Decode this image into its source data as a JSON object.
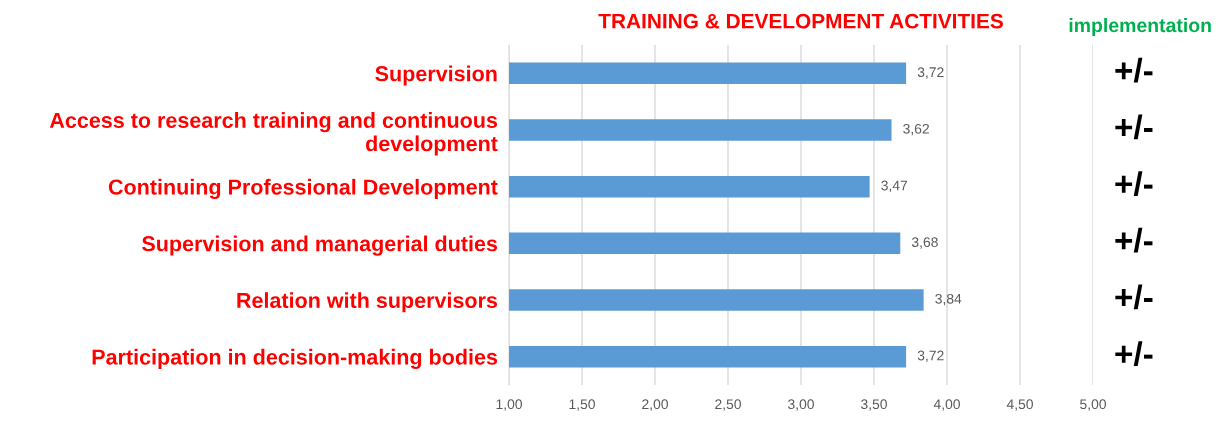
{
  "chart_data": {
    "type": "bar",
    "orientation": "horizontal",
    "title": "TRAINING & DEVELOPMENT ACTIVITIES",
    "categories": [
      "Supervision",
      "Access to research training and continuous\ndevelopment",
      "Continuing Professional Development",
      "Supervision and managerial duties",
      "Relation with supervisors",
      "Participation in decision-making bodies"
    ],
    "values": [
      3.72,
      3.62,
      3.47,
      3.68,
      3.84,
      3.72
    ],
    "value_labels": [
      "3,72",
      "3,62",
      "3,47",
      "3,68",
      "3,84",
      "3,72"
    ],
    "color": "#5b9bd5",
    "xlim": [
      1,
      5
    ],
    "xticks": [
      {
        "value": 1,
        "label": "1,00"
      },
      {
        "value": 1.5,
        "label": "1,50"
      },
      {
        "value": 2,
        "label": "2,00"
      },
      {
        "value": 2.5,
        "label": "2,50"
      },
      {
        "value": 3,
        "label": "3,00"
      },
      {
        "value": 3.5,
        "label": "3,50"
      },
      {
        "value": 4,
        "label": "4,00"
      },
      {
        "value": 4.5,
        "label": "4,50"
      },
      {
        "value": 5,
        "label": "5,00"
      }
    ],
    "grid": "x",
    "annotations": [
      "implementation",
      "+/-",
      "+/-",
      "+/-",
      "+/-",
      "+/-",
      "+/-"
    ]
  }
}
